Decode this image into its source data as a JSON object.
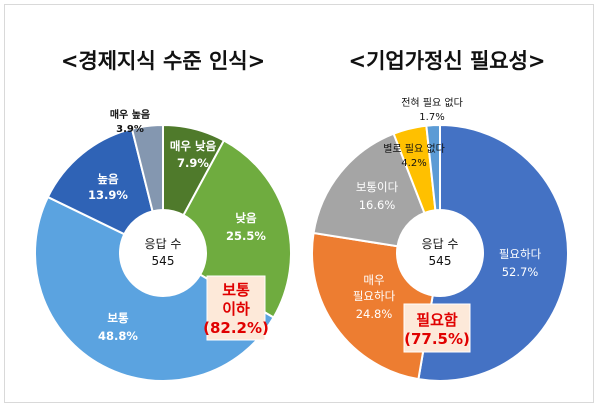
{
  "chart_data": [
    {
      "type": "pie",
      "title": "<경제지식 수준 인식>",
      "center_label": "응답 수",
      "center_value": "545",
      "slices": [
        {
          "label": "매우 낮음",
          "value": 7.9,
          "value_text": "7.9%",
          "color": "#4f7a2b"
        },
        {
          "label": "낮음",
          "value": 25.5,
          "value_text": "25.5%",
          "color": "#6fac3f"
        },
        {
          "label": "보통",
          "value": 48.8,
          "value_text": "48.8%",
          "color": "#5ba3e0"
        },
        {
          "label": "높음",
          "value": 13.9,
          "value_text": "13.9%",
          "color": "#2f63b6"
        },
        {
          "label": "매우 높음",
          "value": 3.9,
          "value_text": "3.9%",
          "color": "#8497b0"
        }
      ],
      "callout": {
        "lines": [
          "보통",
          "이하"
        ],
        "value": "(82.2%)",
        "bg": "#fde9d9",
        "color": "#e00000"
      }
    },
    {
      "type": "pie",
      "title": "<기업가정신 필요성>",
      "center_label": "응답 수",
      "center_value": "545",
      "slices": [
        {
          "label": "필요하다",
          "value": 52.7,
          "value_text": "52.7%",
          "color": "#4472c4"
        },
        {
          "label": "매우 필요하다",
          "value": 24.8,
          "value_text": "24.8%",
          "color": "#ed7d31"
        },
        {
          "label": "보통이다",
          "value": 16.6,
          "value_text": "16.6%",
          "color": "#a5a5a5"
        },
        {
          "label": "별로 필요 없다",
          "value": 4.2,
          "value_text": "4.2%",
          "color": "#ffc000"
        },
        {
          "label": "전혀 필요 없다",
          "value": 1.7,
          "value_text": "1.7%",
          "color": "#5b9bd5"
        }
      ],
      "callout": {
        "lines": [
          "필요함"
        ],
        "value": "(77.5%)",
        "bg": "#fde9d9",
        "color": "#e00000"
      }
    }
  ]
}
